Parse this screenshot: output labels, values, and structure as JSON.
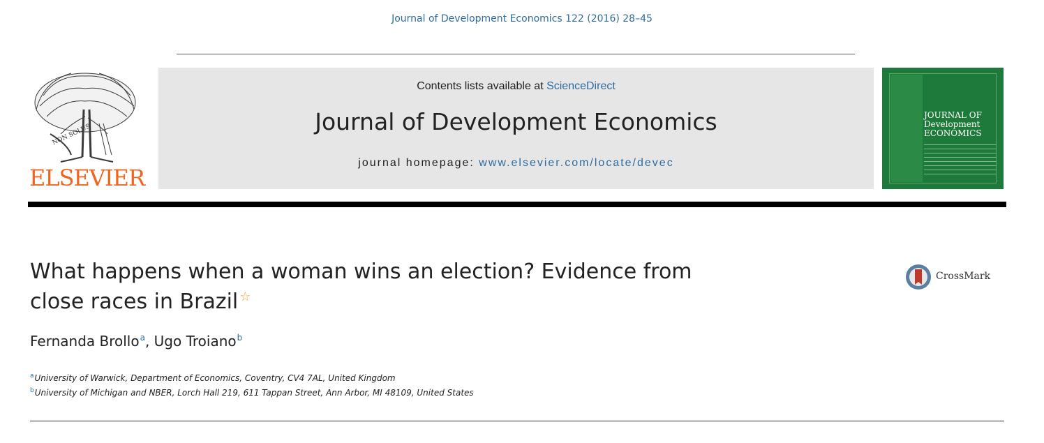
{
  "header": {
    "citation": "Journal of Development Economics 122 (2016) 28–45"
  },
  "publisher": {
    "logo_word": "ELSEVIER",
    "tree_motto": "NON SOLUS"
  },
  "banner": {
    "contents_prefix": "Contents lists available at ",
    "contents_link": "ScienceDirect",
    "journal_name": "Journal of Development Economics",
    "homepage_prefix": "journal homepage: ",
    "homepage_link": "www.elsevier.com/locate/devec"
  },
  "cover": {
    "line1": "JOURNAL OF",
    "line2": "Development",
    "line3": "ECONOMICS"
  },
  "article": {
    "title": "What happens when a woman wins an election? Evidence from close races in Brazil",
    "title_footnote_symbol": "☆",
    "crossmark_label": "CrossMark",
    "authors": [
      {
        "name": "Fernanda Brollo",
        "sup": "a"
      },
      {
        "name": "Ugo Troiano",
        "sup": "b"
      }
    ],
    "author_separator": ", ",
    "affiliations": [
      {
        "sup": "a",
        "text": "University of Warwick, Department of Economics, Coventry, CV4 7AL, United Kingdom"
      },
      {
        "sup": "b",
        "text": "University of Michigan and NBER, Lorch Hall 219, 611 Tappan Street, Ann Arbor, MI 48109, United States"
      }
    ]
  },
  "colors": {
    "link": "#2e6c9e",
    "elsevier_orange": "#f0641e",
    "cover_green": "#1e7a3a",
    "banner_gray": "#e6e6e6"
  }
}
